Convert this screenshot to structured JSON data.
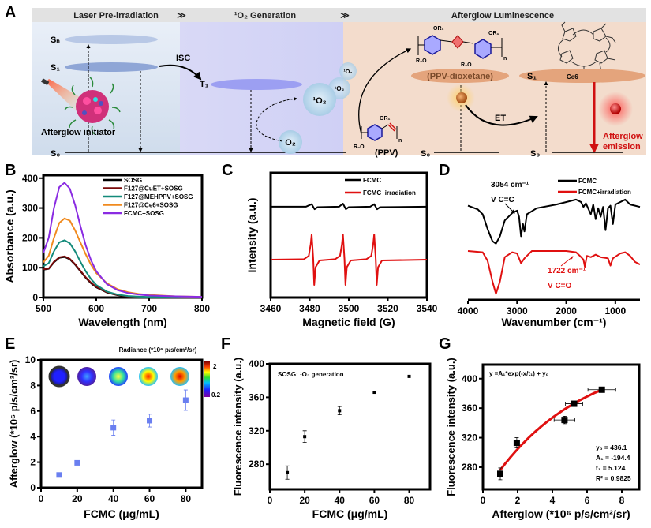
{
  "panel_a": {
    "label": "A",
    "banners": {
      "laser": "Laser Pre-irradiation",
      "generation": "¹O₂  Generation",
      "afterglow": "Afterglow Luminescence"
    },
    "levels": {
      "sn": "Sₙ",
      "s1": "S₁",
      "s0": "S₀",
      "t1": "T₁",
      "s0_ppv": "S₀",
      "s1_ce6": "S₁",
      "s0_ce6": "S₀"
    },
    "labels": {
      "isc": "ISC",
      "initiator": "Afterglow initiator",
      "singlet_oxygen_big": "¹O₂",
      "singlet_oxygen_mid": "¹O₂",
      "singlet_oxygen_small": "¹O₂",
      "oxygen": "O₂",
      "ppv": "(PPV)",
      "dioxetane": "(PPV-dioxetane)",
      "ce6": "Ce6",
      "et": "ET",
      "emission_line1": "Afterglow",
      "emission_line2": "emission",
      "or1": "OR₁",
      "r2o": "R₂O",
      "n": "n"
    },
    "colors": {
      "laser_region": "#dfe8f3",
      "generation_region": "#dcdcf6",
      "afterglow_region": "#f3dccc",
      "emission": "#d01010"
    }
  },
  "chart_data": [
    {
      "panel_label": "B",
      "type": "line",
      "xlabel": "Wavelength (nm)",
      "ylabel": "Absorbance (a.u.)",
      "xlim": [
        500,
        800
      ],
      "ylim": [
        0,
        410
      ],
      "xticks": [
        "500",
        "600",
        "700",
        "800"
      ],
      "yticks": [
        "0",
        "100",
        "200",
        "300",
        "400"
      ],
      "legend_position": "top-right",
      "x": [
        500,
        510,
        520,
        530,
        540,
        550,
        560,
        570,
        580,
        590,
        600,
        620,
        640,
        660,
        680,
        700,
        750,
        800
      ],
      "series": [
        {
          "name": "SOSG",
          "color": "#000000",
          "values": [
            93,
            96,
            118,
            133,
            136,
            128,
            110,
            88,
            66,
            48,
            34,
            17,
            8,
            4,
            2,
            1,
            0,
            0
          ]
        },
        {
          "name": "F127@CuET+SOSG",
          "color": "#7a0a0a",
          "values": [
            95,
            97,
            120,
            135,
            138,
            130,
            112,
            90,
            68,
            50,
            36,
            18,
            9,
            4,
            2,
            1,
            0,
            0
          ]
        },
        {
          "name": "F127@MEHPPV+SOSG",
          "color": "#138a7a",
          "values": [
            105,
            115,
            155,
            185,
            192,
            182,
            155,
            120,
            88,
            62,
            42,
            20,
            10,
            5,
            3,
            2,
            1,
            0
          ]
        },
        {
          "name": "F127@Ce6+SOSG",
          "color": "#f08a1e",
          "values": [
            118,
            140,
            200,
            250,
            265,
            258,
            225,
            185,
            145,
            110,
            82,
            48,
            28,
            18,
            12,
            9,
            4,
            2
          ]
        },
        {
          "name": "FCMC+SOSG",
          "color": "#8a2be2",
          "values": [
            150,
            200,
            300,
            370,
            385,
            365,
            310,
            240,
            175,
            125,
            88,
            45,
            25,
            15,
            10,
            7,
            4,
            2
          ]
        }
      ]
    },
    {
      "panel_label": "C",
      "type": "line",
      "xlabel": "Magnetic field (G)",
      "ylabel": "Intensity (a.u.)",
      "xlim": [
        3460,
        3540
      ],
      "ylim": [
        -1.5,
        3.44
      ],
      "xticks": [
        "3460",
        "3480",
        "3500",
        "3520",
        "3540"
      ],
      "yticks": [],
      "legend_position": "top-right",
      "series": [
        {
          "name": "FCMC",
          "color": "#000000",
          "x": [
            3460,
            3478,
            3481,
            3482.5,
            3484,
            3495,
            3497,
            3498.5,
            3500,
            3511,
            3513,
            3514.5,
            3516,
            3540
          ],
          "values": [
            2.1,
            2.1,
            2.2,
            2.0,
            2.08,
            2.1,
            2.22,
            2.0,
            2.08,
            2.1,
            2.2,
            2.0,
            2.08,
            2.1
          ]
        },
        {
          "name": "FCMC+irradiation",
          "color": "#e01010",
          "x": [
            3460,
            3477,
            3479.5,
            3480.5,
            3481,
            3481.8,
            3482.3,
            3483,
            3485,
            3493,
            3495.5,
            3496.5,
            3497,
            3497.8,
            3498.3,
            3499,
            3501,
            3509,
            3511.5,
            3512.5,
            3513,
            3513.8,
            3514.3,
            3515,
            3517,
            3540
          ],
          "values": [
            0,
            0.02,
            0.15,
            0.6,
            1.0,
            0,
            -1.0,
            -0.3,
            -0.03,
            0.02,
            0.15,
            0.6,
            1.0,
            0,
            -1.0,
            -0.3,
            -0.03,
            0.02,
            0.15,
            0.6,
            1.0,
            0,
            -1.0,
            -0.3,
            -0.03,
            0
          ]
        }
      ]
    },
    {
      "panel_label": "D",
      "type": "line",
      "xlabel": "Wavenumber (cm⁻¹)",
      "ylabel": "",
      "xlim": [
        4000,
        500
      ],
      "ylim": [
        0,
        10
      ],
      "xticks": [
        "4000",
        "3000",
        "2000",
        "1000"
      ],
      "yticks": [],
      "legend_position": "top-right",
      "series": [
        {
          "name": "FCMC",
          "color": "#000000",
          "x": [
            4000,
            3800,
            3700,
            3600,
            3500,
            3430,
            3350,
            3250,
            3100,
            3054,
            3000,
            2960,
            2920,
            2880,
            2850,
            2800,
            2600,
            2200,
            1800,
            1700,
            1650,
            1600,
            1500,
            1450,
            1400,
            1350,
            1300,
            1250,
            1200,
            1150,
            1100,
            1050,
            1000,
            900,
            800,
            700,
            600,
            500
          ],
          "values": [
            7.7,
            7.4,
            7.0,
            5.8,
            4.8,
            4.6,
            5.2,
            6.5,
            7.1,
            7.2,
            7.3,
            6.8,
            5.2,
            6.2,
            5.6,
            7.0,
            7.5,
            7.8,
            8.2,
            8.0,
            7.6,
            7.9,
            7.0,
            7.8,
            6.6,
            7.5,
            6.8,
            7.6,
            5.7,
            7.5,
            7.7,
            6.2,
            7.8,
            8.0,
            8.2,
            7.8,
            7.7,
            7.6
          ]
        },
        {
          "name": "FCMC+irradiation",
          "color": "#e01010",
          "x": [
            4000,
            3700,
            3600,
            3500,
            3430,
            3350,
            3250,
            3100,
            3000,
            2920,
            2850,
            2700,
            2000,
            1800,
            1722,
            1650,
            1620,
            1580,
            1500,
            1400,
            1300,
            1150,
            1100,
            1050,
            900,
            800,
            700,
            600,
            500
          ],
          "values": [
            4.0,
            3.9,
            3.2,
            1.5,
            0.5,
            1.5,
            3.5,
            3.9,
            3.8,
            3.0,
            3.4,
            4.0,
            4.0,
            3.9,
            3.6,
            3.3,
            2.7,
            3.6,
            3.5,
            3.7,
            3.5,
            3.4,
            2.8,
            3.4,
            3.8,
            3.9,
            3.6,
            3.1,
            2.9
          ]
        }
      ],
      "annotations": {
        "cc_wavenumber": "3054 cm⁻¹",
        "cc_bond": "V C=C",
        "co_wavenumber": "1722 cm⁻¹",
        "co_bond": "V C=O"
      }
    },
    {
      "panel_label": "E",
      "type": "scatter",
      "xlabel": "FCMC (μg/mL)",
      "ylabel": "Afterglow (*10⁶ p/s/cm²/sr)",
      "xlim": [
        0,
        89
      ],
      "ylim": [
        0,
        10
      ],
      "xticks": [
        "0",
        "20",
        "40",
        "60",
        "80"
      ],
      "yticks": [
        "0",
        "2",
        "4",
        "6",
        "8",
        "10"
      ],
      "color": "#6a7ff0",
      "points": [
        {
          "x": 10,
          "y": 1.0,
          "err": 0.05
        },
        {
          "x": 20,
          "y": 1.95,
          "err": 0.05
        },
        {
          "x": 40,
          "y": 4.7,
          "err": 0.6
        },
        {
          "x": 60,
          "y": 5.25,
          "err": 0.5
        },
        {
          "x": 80,
          "y": 6.85,
          "err": 0.8
        }
      ],
      "inset": {
        "title": "Radiance (*10⁶ p/s/cm²/sr)",
        "colorbar_max": "2",
        "colorbar_min": "0.2",
        "well_intensity": [
          0.1,
          0.3,
          0.6,
          0.8,
          1.0
        ]
      }
    },
    {
      "panel_label": "F",
      "type": "scatter",
      "xlabel": "FCMC (μg/mL)",
      "ylabel": "Fluorescence intensity (a.u.)",
      "xlim": [
        0,
        92
      ],
      "ylim": [
        250,
        400
      ],
      "xticks": [
        "0",
        "20",
        "40",
        "60",
        "80"
      ],
      "yticks": [
        "280",
        "320",
        "360",
        "400"
      ],
      "color": "#000000",
      "points": [
        {
          "x": 10,
          "y": 270,
          "err": 8
        },
        {
          "x": 20,
          "y": 313,
          "err": 7
        },
        {
          "x": 40,
          "y": 344,
          "err": 5
        },
        {
          "x": 60,
          "y": 366,
          "err": 0
        },
        {
          "x": 80,
          "y": 385,
          "err": 0
        }
      ],
      "annotation": "SOSG: ¹O₂ generation"
    },
    {
      "panel_label": "G",
      "type": "scatter",
      "xlabel": "Afterglow (*10⁶ p/s/cm²/sr)",
      "ylabel": "Fluorescence intensity (a.u.)",
      "xlim": [
        0,
        9
      ],
      "ylim": [
        250,
        419
      ],
      "xticks": [
        "0",
        "2",
        "4",
        "6",
        "8"
      ],
      "yticks": [
        "280",
        "320",
        "360",
        "400"
      ],
      "color": "#000000",
      "fit_color": "#e01010",
      "points": [
        {
          "x": 1.0,
          "y": 271,
          "err": 8,
          "xerr": 0.05
        },
        {
          "x": 1.95,
          "y": 313,
          "err": 7,
          "xerr": 0.05
        },
        {
          "x": 4.7,
          "y": 344,
          "err": 5,
          "xerr": 0.6
        },
        {
          "x": 5.25,
          "y": 366,
          "err": 1,
          "xerr": 0.5
        },
        {
          "x": 6.85,
          "y": 385,
          "err": 1,
          "xerr": 0.8
        }
      ],
      "fit": {
        "y0": 436.1,
        "A1": -194.4,
        "t1": 5.124,
        "x_range": [
          1.0,
          6.85
        ]
      },
      "annotations": {
        "equation": "y =A₁*exp(-x/t₁) + y₀",
        "y0": "y₀ = 436.1",
        "a1": "A₁ = -194.4",
        "t1": "t₁ = 5.124",
        "r2": "R² = 0.9825"
      }
    }
  ]
}
